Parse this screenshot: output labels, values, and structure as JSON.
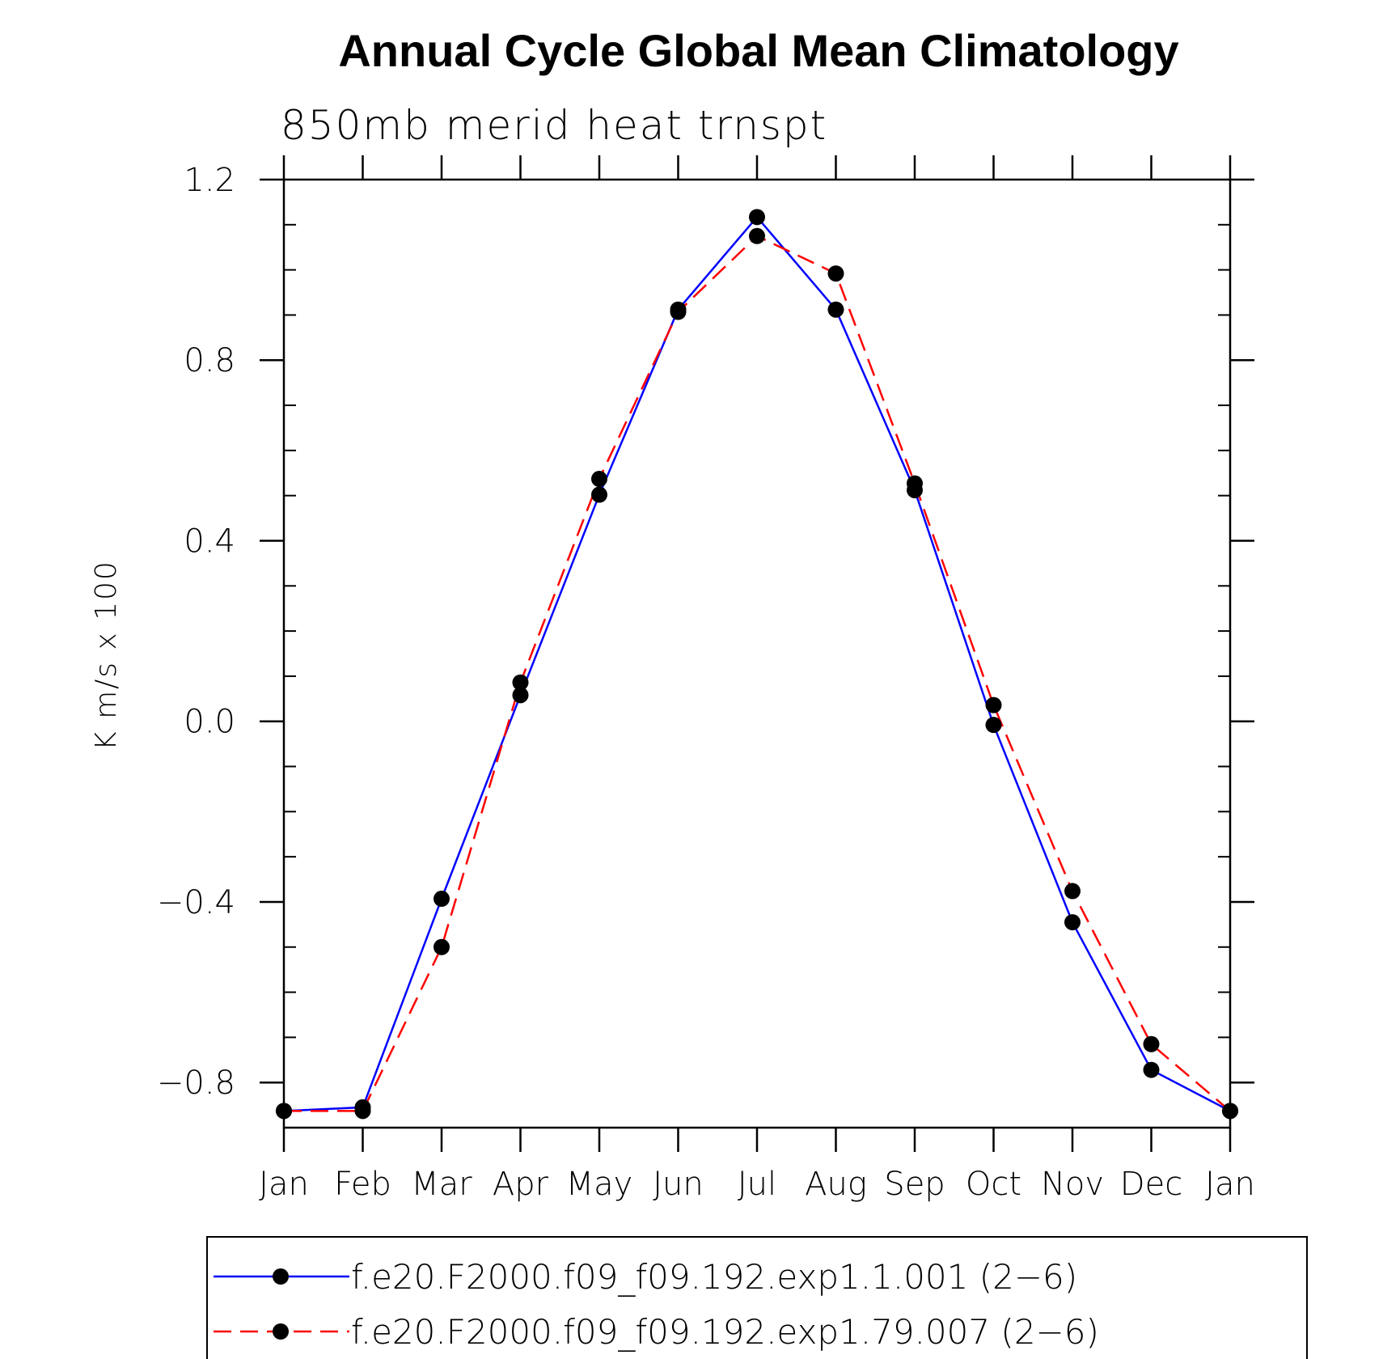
{
  "chart_data": {
    "type": "line",
    "title": "Annual Cycle Global Mean Climatology",
    "subtitle": "850mb merid heat trnspt",
    "xlabel": "",
    "ylabel": "K m/s x 100",
    "categories": [
      "Jan",
      "Feb",
      "Mar",
      "Apr",
      "May",
      "Jun",
      "Jul",
      "Aug",
      "Sep",
      "Oct",
      "Nov",
      "Dec",
      "Jan"
    ],
    "ylim": [
      -0.9,
      1.2
    ],
    "yticks": [
      1.2,
      0.8,
      0.4,
      0.0,
      -0.4,
      -0.8
    ],
    "ytick_labels": [
      "1.2",
      "0.8",
      "0.4",
      "0.0",
      "−0.4",
      "−0.8"
    ],
    "grid": false,
    "legend_position": "bottom",
    "series": [
      {
        "name": "f.e20.F2000.f09_f09.192.exp1.1.001 (2−6)",
        "color": "#0000ff",
        "style": "solid",
        "marker": "filled-circle",
        "values": [
          -0.863,
          -0.855,
          -0.393,
          0.058,
          0.502,
          0.912,
          1.117,
          0.912,
          0.512,
          -0.008,
          -0.445,
          -0.772,
          -0.863
        ]
      },
      {
        "name": "f.e20.F2000.f09_f09.192.exp1.79.007 (2−6)",
        "color": "#ff0000",
        "style": "dashed",
        "marker": "filled-circle",
        "values": [
          -0.863,
          -0.863,
          -0.5,
          0.086,
          0.537,
          0.907,
          1.075,
          0.992,
          0.527,
          0.036,
          -0.376,
          -0.715,
          -0.863
        ]
      }
    ]
  }
}
